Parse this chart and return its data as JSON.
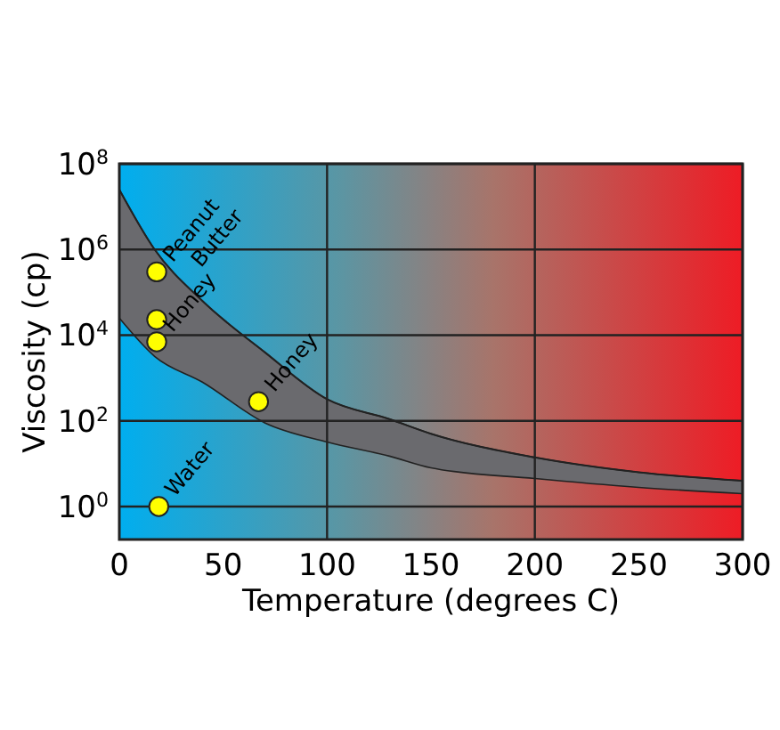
{
  "chart_data": {
    "type": "scatter",
    "xlabel": "Temperature (degrees C)",
    "ylabel": "Viscosity (cp)",
    "log": "y",
    "xlim": [
      0,
      300
    ],
    "xticks": [
      0,
      50,
      100,
      150,
      200,
      250,
      300
    ],
    "ylim": [
      0.17,
      100000000
    ],
    "yticks": [
      {
        "value": 1,
        "label": "10$^{0}$"
      },
      {
        "value": 100,
        "label": "10$^{2}$"
      },
      {
        "value": 10000,
        "label": "10$^{4}$"
      },
      {
        "value": 1000000,
        "label": "10$^{6}$"
      },
      {
        "value": 100000000,
        "label": "10$^{8}$"
      }
    ],
    "grid": true,
    "series": [
      {
        "type": "line",
        "marker": "none",
        "color": "#222222",
        "x": [
          0,
          17,
          40,
          70,
          100,
          130,
          150,
          200,
          250,
          300
        ],
        "values": [
          25000000,
          1000000,
          63000,
          4000,
          320,
          110,
          50,
          14,
          6.3,
          4
        ],
        "upper": [
          25000000,
          1000000,
          63000,
          4000,
          320,
          110,
          50,
          14,
          6.3,
          4
        ],
        "lower": [
          25000,
          3200,
          800,
          90,
          32,
          15,
          8,
          4.5,
          2.8,
          2
        ]
      },
      {
        "marker": "circle",
        "color": "#ffff00",
        "x": [
          18,
          18,
          18,
          67,
          19
        ],
        "values": [
          300000,
          23000,
          7000,
          280,
          1
        ]
      }
    ],
    "annotations": [
      {
        "text": "Peanut Butter",
        "x": 18,
        "y": 300000
      },
      {
        "text": "Honey",
        "x": 18,
        "y": 7000
      },
      {
        "text": "Honey",
        "x": 67,
        "y": 280
      },
      {
        "text": "Water",
        "x": 19,
        "y": 1
      }
    ]
  }
}
